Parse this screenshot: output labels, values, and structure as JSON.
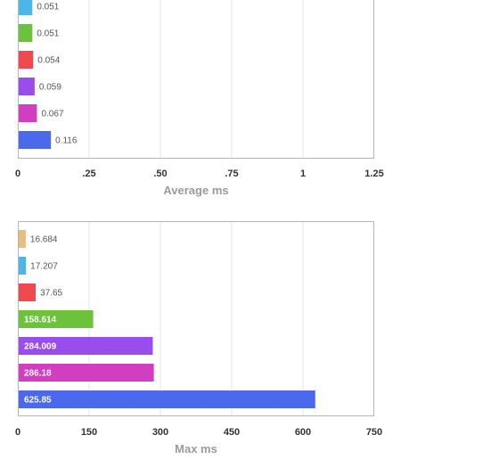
{
  "chart_data": [
    {
      "type": "bar",
      "orientation": "horizontal",
      "xlabel": "Average ms",
      "xlim": [
        0,
        1.25
      ],
      "ticks": [
        0,
        0.25,
        0.5,
        0.75,
        1,
        1.25
      ],
      "tick_labels": [
        "0",
        ".25",
        ".50",
        ".75",
        "1",
        "1.25"
      ],
      "grid": true,
      "bars": [
        {
          "value": 0.051,
          "label": "0.051",
          "color": "#4db6e9"
        },
        {
          "value": 0.051,
          "label": "0.051",
          "color": "#6cc23a"
        },
        {
          "value": 0.054,
          "label": "0.054",
          "color": "#ec4a50"
        },
        {
          "value": 0.059,
          "label": "0.059",
          "color": "#9a4ded"
        },
        {
          "value": 0.067,
          "label": "0.067",
          "color": "#d23ec0"
        },
        {
          "value": 0.116,
          "label": "0.116",
          "color": "#4a69ec"
        }
      ]
    },
    {
      "type": "bar",
      "orientation": "horizontal",
      "xlabel": "Max ms",
      "xlim": [
        0,
        750
      ],
      "ticks": [
        0,
        150,
        300,
        450,
        600,
        750
      ],
      "tick_labels": [
        "0",
        "150",
        "300",
        "450",
        "600",
        "750"
      ],
      "grid": true,
      "bars": [
        {
          "value": 16.684,
          "label": "16.684",
          "color": "#e8bd7e"
        },
        {
          "value": 17.207,
          "label": "17.207",
          "color": "#4db6e9"
        },
        {
          "value": 37.65,
          "label": "37.65",
          "color": "#ec4a50"
        },
        {
          "value": 158.614,
          "label": "158.614",
          "color": "#6cc23a"
        },
        {
          "value": 284.009,
          "label": "284.009",
          "color": "#9a4ded"
        },
        {
          "value": 286.18,
          "label": "286.18",
          "color": "#d23ec0"
        },
        {
          "value": 625.85,
          "label": "625.85",
          "color": "#4a69ec"
        }
      ]
    }
  ]
}
